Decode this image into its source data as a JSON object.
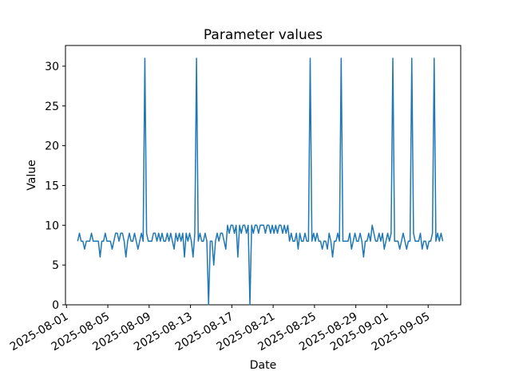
{
  "figure": {
    "background": "#ffffff",
    "spine_color": "#000000",
    "text_color": "#000000"
  },
  "chart_data": {
    "type": "line",
    "title": "Parameter values",
    "xlabel": "Date",
    "ylabel": "Value",
    "grid": false,
    "legend": "none",
    "x_axis": {
      "epoch": "2025-08-01",
      "tick_labels": [
        "2025-08-01",
        "2025-08-05",
        "2025-08-09",
        "2025-08-13",
        "2025-08-17",
        "2025-08-21",
        "2025-08-25",
        "2025-08-29",
        "2025-09-01",
        "2025-09-05"
      ],
      "tick_day_offsets": [
        0,
        4,
        8,
        12,
        16,
        20,
        24,
        28,
        31,
        35
      ],
      "range_days": [
        -0.1,
        38.15
      ],
      "tick_label_rotation_deg": 30
    },
    "y_axis": {
      "tick_labels": [
        "0",
        "5",
        "10",
        "15",
        "20",
        "25",
        "30"
      ],
      "tick_values": [
        0,
        5,
        10,
        15,
        20,
        25,
        30
      ],
      "range": [
        0,
        32.6
      ]
    },
    "series": {
      "name": "parameter-values",
      "color": "#1f77b4",
      "start": "2025-08-02T02:00",
      "start_day_offset": 1.0833,
      "step_hours": 4,
      "baseline_note": "values mostly 8-9, elevated 9-10 Aug16-Aug22, spikes to 31 on Aug8, Aug13, Aug24, Aug27, Sep1, Sep3, Sep5, drops to 0 on Aug14 and Aug18",
      "values": [
        8,
        9,
        8,
        8,
        7,
        8,
        8,
        8,
        9,
        8,
        8,
        8,
        8,
        6,
        8,
        8,
        9,
        8,
        8,
        8,
        7,
        8,
        9,
        9,
        8,
        9,
        9,
        8,
        6,
        8,
        9,
        8,
        8,
        9,
        8,
        7,
        8,
        9,
        8,
        31,
        9,
        8,
        8,
        8,
        9,
        9,
        8,
        9,
        8,
        9,
        8,
        8,
        9,
        8,
        9,
        8,
        7,
        9,
        8,
        9,
        8,
        9,
        6,
        9,
        8,
        9,
        8,
        6,
        9,
        31,
        8,
        9,
        8,
        8,
        9,
        8,
        0,
        8,
        8,
        5,
        8,
        9,
        8,
        9,
        9,
        8,
        7,
        10,
        9,
        10,
        10,
        9,
        10,
        6,
        10,
        9,
        10,
        10,
        9,
        10,
        0,
        10,
        9,
        10,
        10,
        9,
        10,
        10,
        10,
        9,
        10,
        10,
        9,
        10,
        9,
        10,
        9,
        10,
        10,
        9,
        10,
        9,
        10,
        8,
        9,
        8,
        8,
        9,
        7,
        9,
        8,
        8,
        9,
        8,
        8,
        31,
        8,
        9,
        8,
        9,
        8,
        8,
        7,
        8,
        8,
        7,
        9,
        8,
        6,
        8,
        8,
        9,
        8,
        31,
        8,
        8,
        8,
        8,
        9,
        7,
        8,
        9,
        8,
        8,
        9,
        8,
        6,
        8,
        8,
        9,
        8,
        10,
        9,
        8,
        8,
        9,
        8,
        9,
        7,
        8,
        9,
        8,
        9,
        31,
        8,
        8,
        8,
        7,
        8,
        9,
        8,
        7,
        8,
        8,
        31,
        9,
        8,
        8,
        8,
        9,
        7,
        8,
        8,
        7,
        8,
        8,
        9,
        31,
        8,
        9,
        8,
        9,
        8
      ]
    }
  }
}
